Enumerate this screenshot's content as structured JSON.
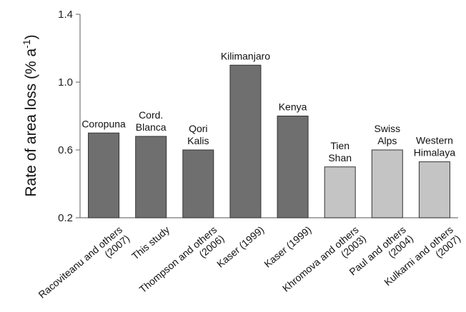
{
  "chart_data": {
    "type": "bar",
    "ylabel_main": "Rate of area loss (% a",
    "ylabel_sup": "-1",
    "ylabel_close": ")",
    "ylim": [
      0.2,
      1.4
    ],
    "yticks": [
      "0.2",
      "0.6",
      "1.0",
      "1.4"
    ],
    "ytick_values": [
      0.2,
      0.6,
      1.0,
      1.4
    ],
    "grid": false,
    "bars": [
      {
        "label_lines": [
          "Coropuna"
        ],
        "source_lines": [
          "Racoviteanu and others",
          "(2007)"
        ],
        "value": 0.7,
        "color": "#6f6f6f"
      },
      {
        "label_lines": [
          "Cord.",
          "Blanca"
        ],
        "source_lines": [
          "This study"
        ],
        "value": 0.68,
        "color": "#6f6f6f"
      },
      {
        "label_lines": [
          "Qori",
          "Kalis"
        ],
        "source_lines": [
          "Thompson and others",
          "(2006)"
        ],
        "value": 0.6,
        "color": "#6f6f6f"
      },
      {
        "label_lines": [
          "Kilimanjaro"
        ],
        "source_lines": [
          "Kaser (1999)"
        ],
        "value": 1.1,
        "color": "#6f6f6f"
      },
      {
        "label_lines": [
          "Kenya"
        ],
        "source_lines": [
          "Kaser (1999)"
        ],
        "value": 0.8,
        "color": "#6f6f6f"
      },
      {
        "label_lines": [
          "Tien",
          "Shan"
        ],
        "source_lines": [
          "Khromova and others",
          "(2003)"
        ],
        "value": 0.5,
        "color": "#c4c4c4"
      },
      {
        "label_lines": [
          "Swiss",
          "Alps"
        ],
        "source_lines": [
          "Paul and others",
          "(2004)"
        ],
        "value": 0.6,
        "color": "#c4c4c4"
      },
      {
        "label_lines": [
          "Western",
          "Himalaya"
        ],
        "source_lines": [
          "Kulkarni and others",
          "(2007)"
        ],
        "value": 0.53,
        "color": "#c4c4c4"
      }
    ]
  }
}
